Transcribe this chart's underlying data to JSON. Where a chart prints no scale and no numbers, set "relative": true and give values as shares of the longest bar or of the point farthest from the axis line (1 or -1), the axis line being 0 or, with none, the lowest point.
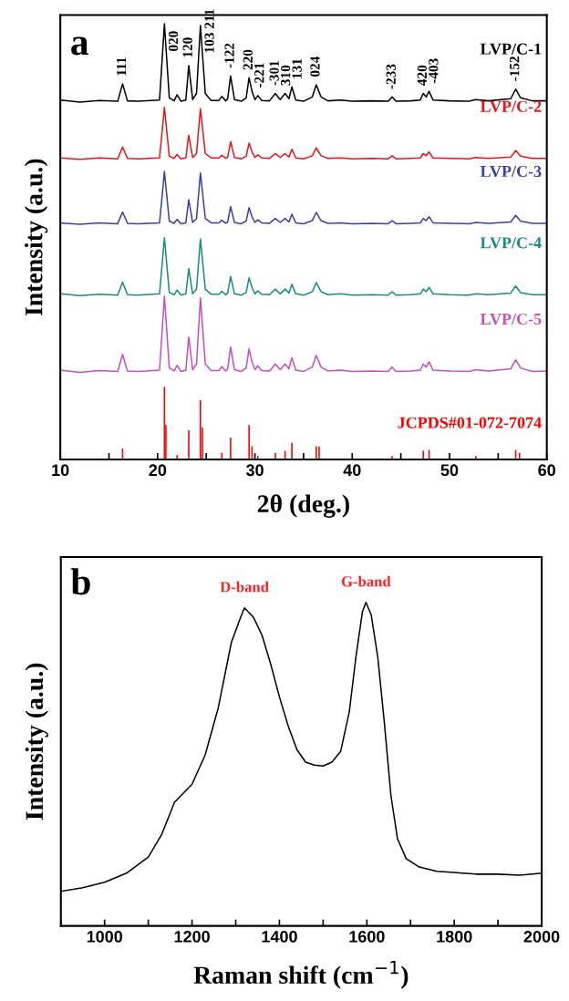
{
  "chart_data": [
    {
      "type": "line",
      "relative": true,
      "xlabel": "2θ (deg.)",
      "ylabel": "Intensity (a.u.)",
      "xlim": [
        10,
        60
      ],
      "xticks": [
        10,
        {
          "value": 15,
          "label": null
        },
        20,
        {
          "value": 25,
          "label": null
        },
        30,
        {
          "value": 35,
          "label": null
        },
        40,
        {
          "value": 45,
          "label": null
        },
        50,
        {
          "value": 55,
          "label": null
        },
        60
      ],
      "tick_labels": "x",
      "x": [
        10,
        12,
        14,
        15.9,
        16.4,
        16.9,
        18,
        20.2,
        20.7,
        21.2,
        21.7,
        22.0,
        22.4,
        22.9,
        23.2,
        23.6,
        24.0,
        24.4,
        24.9,
        25.5,
        26.3,
        26.6,
        27.0,
        27.2,
        27.5,
        27.9,
        28.6,
        29.1,
        29.4,
        29.7,
        30.0,
        30.3,
        30.7,
        31.5,
        32.1,
        32.6,
        33.1,
        33.5,
        33.8,
        34.2,
        35.0,
        35.9,
        36.3,
        36.8,
        37.5,
        38.8,
        40,
        42,
        43.7,
        44.1,
        44.5,
        46,
        47.0,
        47.3,
        47.6,
        47.9,
        48.3,
        50,
        52,
        52.7,
        54,
        56.3,
        56.8,
        57.3,
        58.5,
        60
      ],
      "series": [
        {
          "name": "LVP/C-1",
          "color": "#000000",
          "values": [
            0.825,
            0.82,
            0.824,
            0.822,
            0.862,
            0.823,
            0.822,
            0.825,
            1.0,
            0.83,
            0.823,
            0.837,
            0.822,
            0.825,
            0.904,
            0.826,
            0.84,
            0.996,
            0.84,
            0.824,
            0.824,
            0.833,
            0.823,
            0.828,
            0.88,
            0.826,
            0.822,
            0.83,
            0.876,
            0.845,
            0.826,
            0.835,
            0.824,
            0.823,
            0.84,
            0.826,
            0.84,
            0.828,
            0.855,
            0.825,
            0.822,
            0.832,
            0.86,
            0.832,
            0.823,
            0.825,
            0.822,
            0.823,
            0.822,
            0.832,
            0.822,
            0.823,
            0.825,
            0.84,
            0.832,
            0.845,
            0.825,
            0.823,
            0.822,
            0.826,
            0.823,
            0.828,
            0.85,
            0.83,
            0.823,
            0.823
          ]
        },
        {
          "name": "LVP/C-2",
          "color": "#e8141c",
          "values": [
            0.692,
            0.689,
            0.692,
            0.69,
            0.717,
            0.691,
            0.69,
            0.692,
            0.808,
            0.696,
            0.691,
            0.7,
            0.69,
            0.692,
            0.744,
            0.693,
            0.702,
            0.805,
            0.702,
            0.692,
            0.692,
            0.698,
            0.691,
            0.694,
            0.729,
            0.693,
            0.69,
            0.696,
            0.726,
            0.706,
            0.693,
            0.699,
            0.692,
            0.691,
            0.702,
            0.693,
            0.702,
            0.694,
            0.712,
            0.692,
            0.69,
            0.697,
            0.715,
            0.697,
            0.691,
            0.692,
            0.69,
            0.691,
            0.69,
            0.697,
            0.69,
            0.691,
            0.692,
            0.702,
            0.697,
            0.706,
            0.692,
            0.691,
            0.69,
            0.693,
            0.691,
            0.694,
            0.709,
            0.696,
            0.691,
            0.691
          ]
        },
        {
          "name": "LVP/C-3",
          "color": "#3a3fa8",
          "values": [
            0.543,
            0.54,
            0.543,
            0.541,
            0.568,
            0.542,
            0.541,
            0.543,
            0.661,
            0.547,
            0.542,
            0.551,
            0.541,
            0.543,
            0.596,
            0.544,
            0.553,
            0.658,
            0.553,
            0.543,
            0.543,
            0.549,
            0.542,
            0.545,
            0.58,
            0.544,
            0.541,
            0.547,
            0.578,
            0.557,
            0.544,
            0.55,
            0.543,
            0.542,
            0.553,
            0.544,
            0.553,
            0.545,
            0.563,
            0.543,
            0.541,
            0.548,
            0.567,
            0.548,
            0.542,
            0.543,
            0.541,
            0.542,
            0.541,
            0.548,
            0.541,
            0.542,
            0.543,
            0.553,
            0.548,
            0.557,
            0.543,
            0.542,
            0.541,
            0.544,
            0.542,
            0.545,
            0.56,
            0.547,
            0.542,
            0.542
          ]
        },
        {
          "name": "LVP/C-4",
          "color": "#1a8a82",
          "values": [
            0.38,
            0.376,
            0.379,
            0.377,
            0.407,
            0.378,
            0.377,
            0.38,
            0.509,
            0.383,
            0.378,
            0.389,
            0.377,
            0.38,
            0.438,
            0.38,
            0.391,
            0.506,
            0.391,
            0.379,
            0.379,
            0.386,
            0.378,
            0.382,
            0.42,
            0.38,
            0.377,
            0.383,
            0.417,
            0.395,
            0.38,
            0.387,
            0.379,
            0.378,
            0.391,
            0.38,
            0.391,
            0.382,
            0.402,
            0.38,
            0.377,
            0.385,
            0.406,
            0.385,
            0.378,
            0.38,
            0.377,
            0.378,
            0.377,
            0.385,
            0.377,
            0.378,
            0.38,
            0.391,
            0.385,
            0.395,
            0.38,
            0.378,
            0.377,
            0.38,
            0.378,
            0.382,
            0.398,
            0.383,
            0.378,
            0.378
          ]
        },
        {
          "name": "LVP/C-5",
          "color": "#c54fbf",
          "values": [
            0.205,
            0.2,
            0.204,
            0.202,
            0.241,
            0.203,
            0.202,
            0.205,
            0.375,
            0.21,
            0.203,
            0.216,
            0.202,
            0.205,
            0.281,
            0.206,
            0.219,
            0.371,
            0.219,
            0.204,
            0.204,
            0.213,
            0.203,
            0.208,
            0.258,
            0.206,
            0.202,
            0.21,
            0.254,
            0.224,
            0.206,
            0.215,
            0.204,
            0.203,
            0.219,
            0.206,
            0.219,
            0.208,
            0.234,
            0.205,
            0.202,
            0.212,
            0.239,
            0.212,
            0.203,
            0.205,
            0.202,
            0.203,
            0.202,
            0.212,
            0.202,
            0.203,
            0.205,
            0.219,
            0.212,
            0.224,
            0.205,
            0.203,
            0.202,
            0.206,
            0.203,
            0.208,
            0.229,
            0.21,
            0.202,
            0.203
          ]
        },
        {
          "name": "JCPDS#01-072-7074",
          "type": "bar",
          "color": "#ff0000",
          "x": [
            16.4,
            20.7,
            20.85,
            22.0,
            23.2,
            24.4,
            24.6,
            26.6,
            27.5,
            29.4,
            29.7,
            30.3,
            32.1,
            33.1,
            33.8,
            36.3,
            36.6,
            44.1,
            47.3,
            47.9,
            52.7,
            56.8,
            57.2
          ],
          "values": [
            0.025,
            0.167,
            0.079,
            0.01,
            0.067,
            0.136,
            0.073,
            0.015,
            0.05,
            0.079,
            0.03,
            0.008,
            0.015,
            0.02,
            0.038,
            0.03,
            0.03,
            0.008,
            0.02,
            0.022,
            0.008,
            0.022,
            0.015
          ]
        }
      ],
      "annotations": [
        "a",
        {
          "text": "111",
          "x": 16.4,
          "y": 0.862
        },
        {
          "text": "020",
          "x": 20.7,
          "y": 1.0
        },
        {
          "text": "120",
          "x": 23.2,
          "y": 0.904
        },
        {
          "text": "103 211",
          "x": 24.4,
          "y": 0.996
        },
        {
          "text": "-122",
          "x": 27.5,
          "y": 0.88
        },
        {
          "text": "220",
          "x": 29.4,
          "y": 0.876
        },
        {
          "text": "-221",
          "x": 30.3,
          "y": 0.835
        },
        {
          "text": "-301",
          "x": 32.1,
          "y": 0.84
        },
        {
          "text": "310",
          "x": 33.1,
          "y": 0.84
        },
        {
          "text": "131",
          "x": 33.8,
          "y": 0.855
        },
        {
          "text": "024",
          "x": 36.3,
          "y": 0.86
        },
        {
          "text": "-233",
          "x": 44.1,
          "y": 0.832
        },
        {
          "text": "420",
          "x": 47.3,
          "y": 0.84
        },
        {
          "text": "-403",
          "x": 47.9,
          "y": 0.845
        },
        {
          "text": "-152",
          "x": 56.8,
          "y": 0.85
        }
      ]
    },
    {
      "type": "line",
      "relative": true,
      "xlabel": "Raman shift (cm$^{−1}$)",
      "ylabel": "Intensity (a.u.)",
      "xlim": [
        900,
        2000
      ],
      "xticks": [
        {
          "value": 900,
          "label": null
        },
        1000,
        {
          "value": 1100,
          "label": null
        },
        1200,
        {
          "value": 1300,
          "label": null
        },
        1400,
        {
          "value": 1500,
          "label": null
        },
        1600,
        {
          "value": 1700,
          "label": null
        },
        1800,
        {
          "value": 1900,
          "label": null
        },
        2000
      ],
      "tick_labels": "x",
      "x": [
        900,
        950,
        1000,
        1050,
        1100,
        1130,
        1160,
        1200,
        1230,
        1260,
        1290,
        1310,
        1320,
        1340,
        1360,
        1380,
        1400,
        1420,
        1440,
        1460,
        1480,
        1500,
        1520,
        1540,
        1560,
        1575,
        1590,
        1598,
        1610,
        1625,
        1640,
        1655,
        1670,
        1690,
        1720,
        1760,
        1800,
        1850,
        1900,
        1950,
        2000
      ],
      "series": [
        {
          "color": "#000000",
          "values": [
            0.107,
            0.118,
            0.135,
            0.163,
            0.213,
            0.281,
            0.382,
            0.438,
            0.528,
            0.674,
            0.876,
            0.949,
            0.983,
            0.955,
            0.899,
            0.809,
            0.708,
            0.618,
            0.545,
            0.506,
            0.497,
            0.494,
            0.506,
            0.539,
            0.663,
            0.831,
            0.972,
            1.0,
            0.961,
            0.831,
            0.629,
            0.404,
            0.27,
            0.208,
            0.182,
            0.169,
            0.165,
            0.16,
            0.16,
            0.157,
            0.163
          ]
        }
      ],
      "annotations": [
        "b",
        {
          "text": "D-band",
          "x": 1320,
          "y": 0.983
        },
        {
          "text": "G-band",
          "x": 1598,
          "y": 1.0
        }
      ]
    }
  ]
}
